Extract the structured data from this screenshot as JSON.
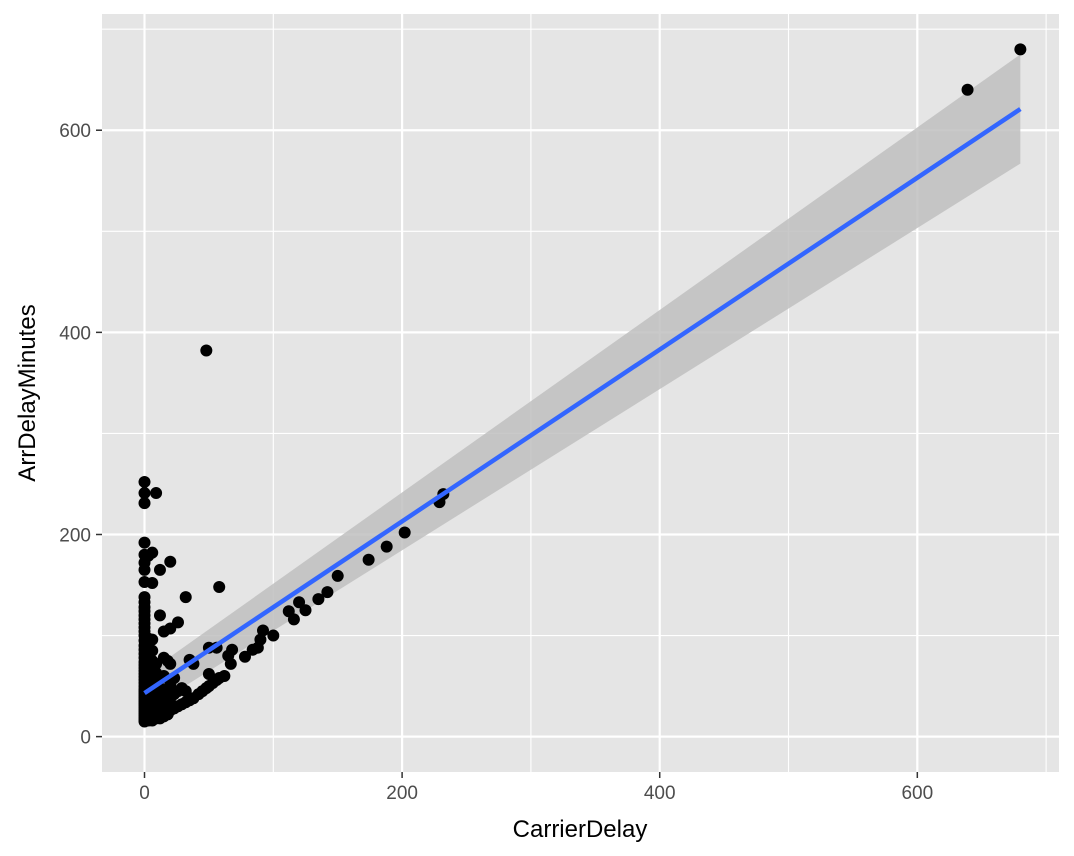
{
  "chart_data": {
    "type": "scatter",
    "title": "",
    "xlabel": "CarrierDelay",
    "ylabel": "ArrDelayMinutes",
    "xlim": [
      -33,
      710
    ],
    "ylim": [
      -35,
      715
    ],
    "x_ticks": [
      0,
      200,
      400,
      600
    ],
    "y_ticks": [
      0,
      200,
      400,
      600
    ],
    "x_minor": [
      100,
      300,
      500,
      700
    ],
    "y_minor": [
      100,
      300,
      500,
      700
    ],
    "x_tick_labels": [
      "0",
      "200",
      "400",
      "600"
    ],
    "y_tick_labels": [
      "0",
      "200",
      "400",
      "600"
    ],
    "grid": true,
    "colors": {
      "panel": "#e5e5e5",
      "grid": "#ffffff",
      "point": "#000000",
      "line": "#3366ff",
      "band": "#bfbfbf"
    },
    "points": [
      [
        0,
        15
      ],
      [
        0,
        17
      ],
      [
        0,
        19
      ],
      [
        0,
        21
      ],
      [
        0,
        23
      ],
      [
        0,
        25
      ],
      [
        0,
        27
      ],
      [
        0,
        29
      ],
      [
        0,
        31
      ],
      [
        0,
        33
      ],
      [
        0,
        35
      ],
      [
        0,
        37
      ],
      [
        0,
        39
      ],
      [
        0,
        41
      ],
      [
        0,
        43
      ],
      [
        0,
        45
      ],
      [
        0,
        47
      ],
      [
        0,
        50
      ],
      [
        0,
        53
      ],
      [
        0,
        56
      ],
      [
        0,
        59
      ],
      [
        0,
        62
      ],
      [
        0,
        65
      ],
      [
        0,
        68
      ],
      [
        0,
        71
      ],
      [
        0,
        74
      ],
      [
        0,
        78
      ],
      [
        0,
        82
      ],
      [
        0,
        86
      ],
      [
        0,
        90
      ],
      [
        0,
        95
      ],
      [
        0,
        100
      ],
      [
        0,
        104
      ],
      [
        0,
        108
      ],
      [
        0,
        112
      ],
      [
        0,
        116
      ],
      [
        0,
        120
      ],
      [
        0,
        124
      ],
      [
        0,
        128
      ],
      [
        0,
        133
      ],
      [
        0,
        138
      ],
      [
        0,
        153
      ],
      [
        0,
        165
      ],
      [
        0,
        172
      ],
      [
        0,
        180
      ],
      [
        0,
        192
      ],
      [
        0,
        231
      ],
      [
        0,
        241
      ],
      [
        0,
        252
      ],
      [
        3,
        16
      ],
      [
        3,
        20
      ],
      [
        3,
        26
      ],
      [
        3,
        32
      ],
      [
        3,
        38
      ],
      [
        3,
        44
      ],
      [
        3,
        52
      ],
      [
        3,
        60
      ],
      [
        3,
        70
      ],
      [
        3,
        80
      ],
      [
        3,
        88
      ],
      [
        3,
        97
      ],
      [
        3,
        179
      ],
      [
        6,
        16
      ],
      [
        6,
        22
      ],
      [
        6,
        30
      ],
      [
        6,
        40
      ],
      [
        6,
        50
      ],
      [
        6,
        58
      ],
      [
        6,
        66
      ],
      [
        6,
        75
      ],
      [
        6,
        85
      ],
      [
        6,
        96
      ],
      [
        6,
        152
      ],
      [
        6,
        182
      ],
      [
        9,
        18
      ],
      [
        9,
        24
      ],
      [
        9,
        34
      ],
      [
        9,
        44
      ],
      [
        9,
        54
      ],
      [
        9,
        63
      ],
      [
        9,
        72
      ],
      [
        9,
        241
      ],
      [
        12,
        18
      ],
      [
        12,
        26
      ],
      [
        12,
        36
      ],
      [
        12,
        48
      ],
      [
        12,
        120
      ],
      [
        12,
        165
      ],
      [
        15,
        20
      ],
      [
        15,
        30
      ],
      [
        15,
        42
      ],
      [
        15,
        60
      ],
      [
        15,
        78
      ],
      [
        15,
        104
      ],
      [
        18,
        22
      ],
      [
        18,
        34
      ],
      [
        18,
        46
      ],
      [
        18,
        75
      ],
      [
        20,
        26
      ],
      [
        20,
        38
      ],
      [
        20,
        52
      ],
      [
        20,
        72
      ],
      [
        20,
        107
      ],
      [
        20,
        173
      ],
      [
        23,
        28
      ],
      [
        23,
        42
      ],
      [
        23,
        58
      ],
      [
        26,
        30
      ],
      [
        26,
        45
      ],
      [
        26,
        113
      ],
      [
        29,
        32
      ],
      [
        29,
        48
      ],
      [
        32,
        34
      ],
      [
        32,
        45
      ],
      [
        32,
        138
      ],
      [
        35,
        36
      ],
      [
        35,
        76
      ],
      [
        38,
        38
      ],
      [
        38,
        72
      ],
      [
        42,
        42
      ],
      [
        45,
        45
      ],
      [
        48,
        48
      ],
      [
        48,
        382
      ],
      [
        50,
        50
      ],
      [
        50,
        62
      ],
      [
        50,
        88
      ],
      [
        53,
        53
      ],
      [
        56,
        56
      ],
      [
        56,
        88
      ],
      [
        58,
        58
      ],
      [
        58,
        148
      ],
      [
        62,
        60
      ],
      [
        65,
        80
      ],
      [
        67,
        72
      ],
      [
        68,
        86
      ],
      [
        78,
        79
      ],
      [
        84,
        86
      ],
      [
        88,
        88
      ],
      [
        90,
        96
      ],
      [
        92,
        105
      ],
      [
        100,
        100
      ],
      [
        112,
        124
      ],
      [
        116,
        116
      ],
      [
        120,
        133
      ],
      [
        125,
        125
      ],
      [
        135,
        136
      ],
      [
        142,
        143
      ],
      [
        150,
        159
      ],
      [
        174,
        175
      ],
      [
        188,
        188
      ],
      [
        202,
        202
      ],
      [
        229,
        232
      ],
      [
        232,
        240
      ],
      [
        639,
        640
      ],
      [
        680,
        680
      ]
    ],
    "fit_line": {
      "x": [
        0,
        680
      ],
      "y": [
        43,
        621
      ],
      "band_lower": [
        25,
        567
      ],
      "band_upper": [
        61,
        675
      ]
    }
  }
}
